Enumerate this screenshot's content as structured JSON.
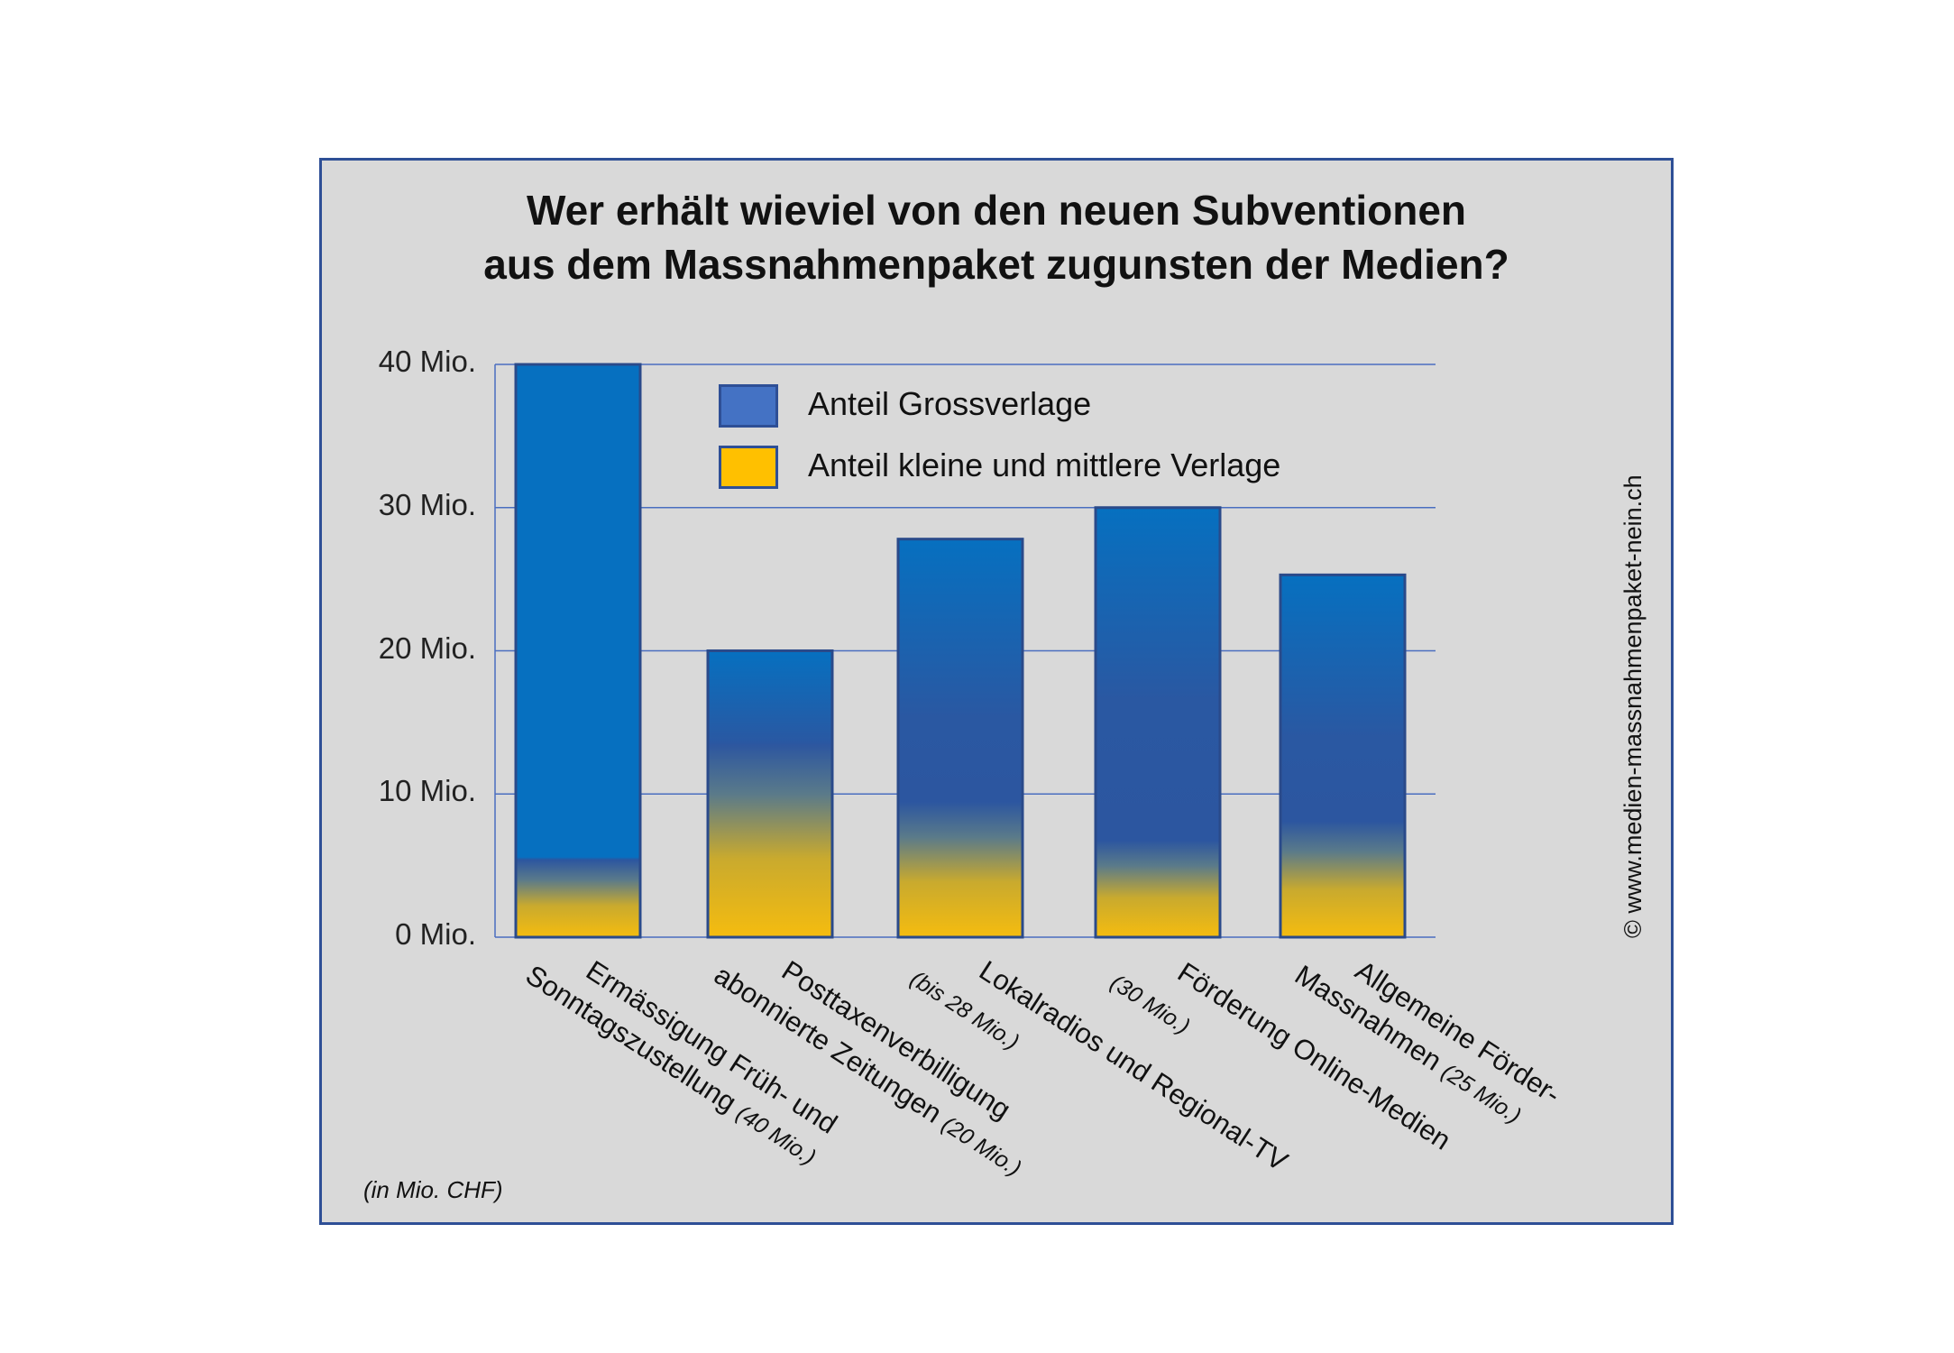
{
  "chart_data": {
    "type": "bar",
    "title": [
      "Wer erhält wieviel von den neuen Subventionen",
      "aus dem Massnahmenpaket zugunsten der Medien?"
    ],
    "categories": [
      {
        "line1": "Ermässigung Früh- und",
        "line2": "Sonntagszustellung",
        "amount": "(40 Mio.)"
      },
      {
        "line1": "Posttaxenverbilligung",
        "line2": "abonnierte Zeitungen",
        "amount": "(20 Mio.)"
      },
      {
        "line1": "Lokalradios und Regional-TV",
        "line2": "",
        "amount": "(bis 28 Mio.)"
      },
      {
        "line1": "Förderung Online-Medien",
        "line2": "",
        "amount": "(30 Mio.)"
      },
      {
        "line1": "Allgemeine Förder-",
        "line2": "Massnahmen",
        "amount": "(25 Mio.)"
      }
    ],
    "series": [
      {
        "name": "Anteil Grossverlage",
        "color": "#4472c4",
        "values": [
          36,
          10,
          20.8,
          25,
          19.3
        ]
      },
      {
        "name": "Anteil kleine und mittlere Verlage",
        "color": "#ffc000",
        "values": [
          4,
          10,
          7,
          5,
          6
        ]
      }
    ],
    "totals": [
      40,
      20,
      27.8,
      30,
      25.3
    ],
    "yticks": [
      "0 Mio.",
      "10 Mio.",
      "20 Mio.",
      "30 Mio.",
      "40 Mio."
    ],
    "ylim": [
      0,
      40
    ],
    "grid": true,
    "legend_position": "top-center",
    "unit_note": "(in Mio. CHF)",
    "watermark": "© www.medien-massnahmenpaket-nein.ch"
  }
}
